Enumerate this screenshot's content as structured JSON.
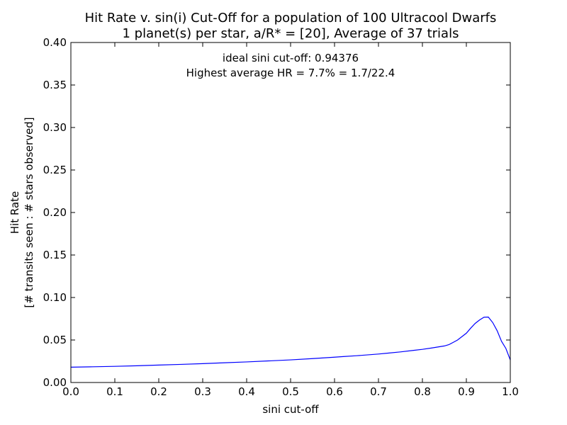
{
  "chart_data": {
    "type": "line",
    "title_line1": "Hit Rate v. sin(i) Cut-Off for a population of 100 Ultracool Dwarfs",
    "title_line2": "1 planet(s) per star, a/R* = [20], Average of 37 trials",
    "xlabel": "sini cut-off",
    "ylabel_line1": "Hit Rate",
    "ylabel_line2": "[# transits seen : # stars observed]",
    "xlim": [
      0.0,
      1.0
    ],
    "ylim": [
      0.0,
      0.4
    ],
    "xticks": [
      "0.0",
      "0.1",
      "0.2",
      "0.3",
      "0.4",
      "0.5",
      "0.6",
      "0.7",
      "0.8",
      "0.9",
      "1.0"
    ],
    "yticks": [
      "0.00",
      "0.05",
      "0.10",
      "0.15",
      "0.20",
      "0.25",
      "0.30",
      "0.35",
      "0.40"
    ],
    "annotations": [
      "ideal sini cut-off: 0.94376",
      "Highest average HR = 7.7% = 1.7/22.4"
    ],
    "grid": false,
    "series": [
      {
        "color": "#0000ff",
        "x": [
          0.0,
          0.05,
          0.1,
          0.15,
          0.2,
          0.25,
          0.3,
          0.35,
          0.4,
          0.45,
          0.5,
          0.55,
          0.6,
          0.62,
          0.65,
          0.7,
          0.72,
          0.75,
          0.78,
          0.8,
          0.82,
          0.85,
          0.86,
          0.87,
          0.88,
          0.9,
          0.91,
          0.92,
          0.93,
          0.94,
          0.95,
          0.96,
          0.97,
          0.98,
          0.99,
          1.0
        ],
        "y": [
          0.018,
          0.0185,
          0.019,
          0.0197,
          0.0205,
          0.0213,
          0.0222,
          0.0232,
          0.0242,
          0.0254,
          0.0266,
          0.0281,
          0.0298,
          0.0305,
          0.0315,
          0.0335,
          0.0345,
          0.036,
          0.0378,
          0.039,
          0.0405,
          0.043,
          0.0445,
          0.0472,
          0.05,
          0.058,
          0.064,
          0.0695,
          0.0735,
          0.0768,
          0.077,
          0.0705,
          0.061,
          0.0485,
          0.04,
          0.0265
        ]
      }
    ]
  }
}
